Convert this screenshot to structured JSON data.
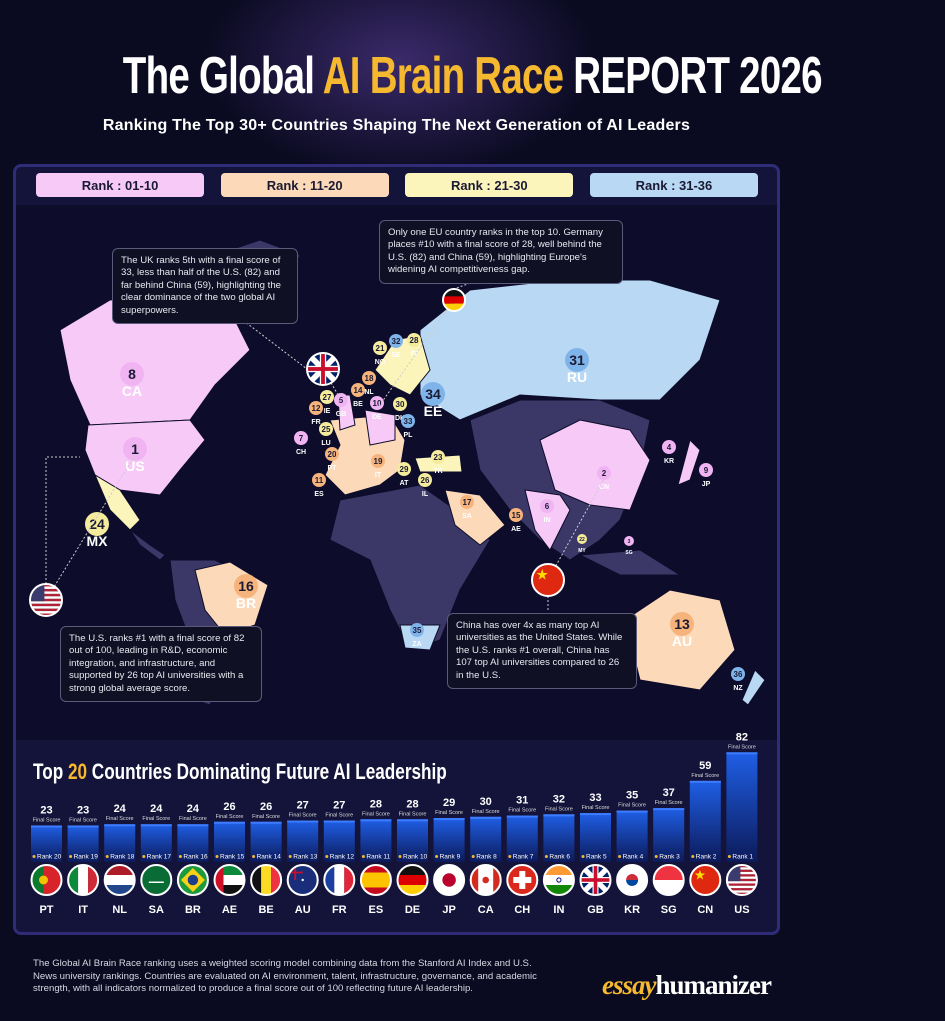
{
  "header": {
    "title_pre": "The Global ",
    "title_hl": "AI Brain Race",
    "title_post": " REPORT 2026",
    "subtitle": "Ranking The Top 30+ Countries Shaping The Next Generation of AI Leaders"
  },
  "tiers": [
    {
      "label": "Rank : 01-10",
      "color": "#f7c9f7",
      "badge": "#f1b4f3"
    },
    {
      "label": "Rank : 11-20",
      "color": "#fcd9b8",
      "badge": "#f6b47c"
    },
    {
      "label": "Rank : 21-30",
      "color": "#fbf4bb",
      "badge": "#f4ec9c"
    },
    {
      "label": "Rank : 31-36",
      "color": "#b9d8f3",
      "badge": "#7fb4ea"
    }
  ],
  "map_markers": [
    {
      "code": "US",
      "rank": 1
    },
    {
      "code": "CN",
      "rank": 2
    },
    {
      "code": "SG",
      "rank": 3
    },
    {
      "code": "KR",
      "rank": 4
    },
    {
      "code": "GB",
      "rank": 5
    },
    {
      "code": "IN",
      "rank": 6
    },
    {
      "code": "CH",
      "rank": 7
    },
    {
      "code": "CA",
      "rank": 8
    },
    {
      "code": "JP",
      "rank": 9
    },
    {
      "code": "DE",
      "rank": 10
    },
    {
      "code": "ES",
      "rank": 11
    },
    {
      "code": "FR",
      "rank": 12
    },
    {
      "code": "AU",
      "rank": 13
    },
    {
      "code": "BE",
      "rank": 14
    },
    {
      "code": "AE",
      "rank": 15
    },
    {
      "code": "BR",
      "rank": 16
    },
    {
      "code": "SA",
      "rank": 17
    },
    {
      "code": "NL",
      "rank": 18
    },
    {
      "code": "IT",
      "rank": 19
    },
    {
      "code": "PT",
      "rank": 20
    },
    {
      "code": "NO",
      "rank": 21
    },
    {
      "code": "MY",
      "rank": 22
    },
    {
      "code": "TR",
      "rank": 23
    },
    {
      "code": "MX",
      "rank": 24
    },
    {
      "code": "LU",
      "rank": 25
    },
    {
      "code": "IL",
      "rank": 26
    },
    {
      "code": "IE",
      "rank": 27
    },
    {
      "code": "FI",
      "rank": 28
    },
    {
      "code": "AT",
      "rank": 29
    },
    {
      "code": "DK",
      "rank": 30
    },
    {
      "code": "RU",
      "rank": 31
    },
    {
      "code": "SE",
      "rank": 32
    },
    {
      "code": "PL",
      "rank": 33
    },
    {
      "code": "EE",
      "rank": 34
    },
    {
      "code": "ZA",
      "rank": 35
    },
    {
      "code": "NZ",
      "rank": 36
    }
  ],
  "notes": {
    "uk": "The UK ranks 5th with a final score of 33, less than half of the U.S. (82) and far behind China (59), highlighting the clear dominance of the two global AI superpowers.",
    "germany": "Only one EU country ranks in the top 10. Germany places #10 with a final score of 28, well behind the U.S. (82) and China (59), highlighting Europe's widening AI competitiveness gap.",
    "us": "The U.S. ranks #1 with a final score of 82 out of 100, leading in R&D, economic integration, and infrastructure, and supported by 26 top AI universities with a strong global average score.",
    "china": "China has over 4x as many top AI universities as the United States. While the U.S. ranks #1 overall, China has 107 top AI universities compared to 26 in the U.S."
  },
  "chart_data": {
    "type": "bar",
    "title_pre": "Top ",
    "title_hl": "20",
    "title_post": " Countries Dominating Future AI Leadership",
    "value_label": "Final Score",
    "rank_prefix": "Rank ",
    "categories": [
      "PT",
      "IT",
      "NL",
      "SA",
      "BR",
      "AE",
      "BE",
      "AU",
      "FR",
      "ES",
      "DE",
      "JP",
      "CA",
      "CH",
      "IN",
      "GB",
      "KR",
      "SG",
      "CN",
      "US"
    ],
    "ranks": [
      20,
      19,
      18,
      17,
      16,
      15,
      14,
      13,
      12,
      11,
      10,
      9,
      8,
      7,
      6,
      5,
      4,
      3,
      2,
      1
    ],
    "values": [
      23,
      23,
      24,
      24,
      24,
      26,
      26,
      27,
      27,
      28,
      28,
      29,
      30,
      31,
      32,
      33,
      35,
      37,
      59,
      82
    ],
    "bar_color": "#1f5fe6"
  },
  "footer": {
    "text": "The Global AI Brain Race ranking uses a weighted scoring model combining data from the Stanford AI Index and U.S. News university rankings. Countries are evaluated on AI environment, talent, infrastructure, governance, and academic strength, with all indicators normalized to produce a final score out of 100 reflecting future AI leadership.",
    "logo_a": "essay",
    "logo_b": "humanizer"
  }
}
